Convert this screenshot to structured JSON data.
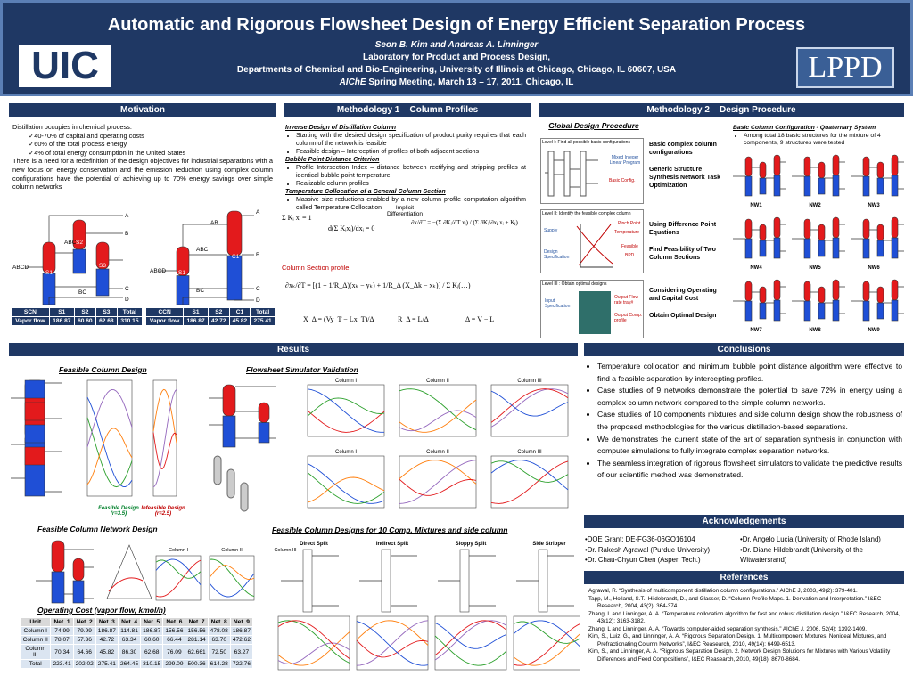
{
  "header": {
    "title": "Automatic and Rigorous Flowsheet Design of Energy Efficient Separation Process",
    "authors": "Seon B. Kim and Andreas A. Linninger",
    "lab": "Laboratory for Product and Process Design,",
    "dept": "Departments of Chemical and Bio-Engineering, University of Illinois at Chicago, Chicago, IL 60607, USA",
    "meeting_org": "AIChE",
    "meeting": " Spring Meeting, March 13 – 17, 2011, Chicago, IL",
    "logo_left": "UIC",
    "logo_right": "LPPD"
  },
  "motivation": {
    "title": "Motivation",
    "intro": "Distillation occupies in chemical process:",
    "checks": [
      "40-70% of capital and operating costs",
      "60% of the total process energy",
      "4% of total energy consumption in the United States"
    ],
    "para": "There is a need for a redefinition of the design objectives for industrial separations with a new focus on energy conservation and the emission reduction using complex column configurations have the potential of achieving up to 70% energy savings over simple column networks",
    "scn_labels": [
      "ABCD",
      "ABC",
      "S1",
      "S2",
      "S3",
      "A",
      "B",
      "BC",
      "C",
      "D"
    ],
    "ccn_labels": [
      "ABCD",
      "AB",
      "ABC",
      "BC",
      "S1",
      "S2",
      "C1",
      "A",
      "B",
      "C",
      "D"
    ],
    "table1": {
      "head": [
        "SCN",
        "S1",
        "S2",
        "S3",
        "Total"
      ],
      "rows": [
        [
          "Vapor flow",
          "186.87",
          "60.60",
          "62.68",
          "310.15"
        ]
      ]
    },
    "table2": {
      "head": [
        "CCN",
        "S1",
        "S2",
        "C1",
        "Total"
      ],
      "rows": [
        [
          "Vapor flow",
          "186.87",
          "42.72",
          "45.82",
          "275.41"
        ]
      ]
    }
  },
  "methodology1": {
    "title": "Methodology 1 – Column Profiles",
    "blocks": [
      {
        "heading": "Inverse Design of Distillation Column",
        "items": [
          "Starting with the desired design specification of product purity requires that each column of the network is feasible",
          "Feasible design – Interception of profiles of both adjacent sections"
        ]
      },
      {
        "heading": "Bubble Point Distance Criterion",
        "items": [
          "Profile Intersection Index – distance between rectifying and stripping profiles at identical bubble point temperature",
          "Realizable column profiles"
        ]
      },
      {
        "heading": "Temperature Collocation of a General Column Section",
        "items": [
          "Massive size reductions enabled by a new column profile computation algorithm called Temperature Collocation"
        ]
      }
    ],
    "eq_sum": "Σ Kᵢ xᵢ = 1",
    "eq_implicit": "Implicit Differentiation",
    "eq_deriv": "d(Σ Kᵢxᵢ)/dxᵢ = 0",
    "eq_dT": "∂x/∂T = −(Σ ∂Kᵢ/∂T xᵢ) / (Σ ∂Kᵢ/∂xⱼ xᵢ + Kⱼ)",
    "profile_label": "Column Section profile:",
    "eq_profile": "∂xₖ/∂T = [(1 + 1/R_Δ)(xₖ − yₖ) + 1/R_Δ (X_Δk − xₖ)] / Σ Kᵢ(…)",
    "eq_xd": "X_Δ = (Vy_T − Lx_T)/Δ",
    "eq_rd": "R_Δ = L/Δ",
    "eq_delta": "Δ = V − L"
  },
  "methodology2": {
    "title": "Methodology 2 – Design Procedure",
    "global_title": "Global Design Procedure",
    "level1": "Level I: Find all possible basic configurations",
    "milp": "Mixed Integer Linear Program",
    "basic_config": "Basic Config.",
    "level1_right": [
      "Basic complex column configurations",
      "Generic Structure Synthesis Network Task Optimization"
    ],
    "level2": "Level II: Identify the feasible complex column",
    "level2_boxes": [
      "Supply",
      "Design Specification",
      "Pinch Point",
      "Temperature",
      "Feasible",
      "BPD"
    ],
    "level2_right": [
      "Using Difference Point Equations",
      "Find Feasibility of Two Column Sections"
    ],
    "level3": "Level III : Obtain optimal designs",
    "level3_boxes": [
      "Input Specification",
      "Output Flow rate tray#",
      "Output Comp. profile"
    ],
    "level3_right": [
      "Considering Operating and Capital Cost",
      "Obtain Optimal Design"
    ],
    "config_title": "Basic Column Configuration",
    "config_sub": " - Quaternary System",
    "config_item": "Among total 18 basic structures for the mixture of 4 components, 9 structures were tested",
    "networks": [
      "NW1",
      "NW2",
      "NW3",
      "NW4",
      "NW5",
      "NW6",
      "NW7",
      "NW8",
      "NW9"
    ]
  },
  "results": {
    "title": "Results",
    "fcd_title": "Feasible Column Design",
    "sim_title": "Flowsheet Simulator Validation",
    "feasible_caption": "Feasible Design (r=3.5)",
    "infeasible_caption": "Infeasible Design (r=2.5)",
    "network_title": "Feasible Column Network Design",
    "column_titles": [
      "Column I",
      "Column II",
      "Column III"
    ],
    "cost_title": "Operating Cost (vapor flow, kmol/h)",
    "cost_table": {
      "head": [
        "Unit",
        "Net. 1",
        "Net. 2",
        "Net. 3",
        "Net. 4",
        "Net. 5",
        "Net. 6",
        "Net. 7",
        "Net. 8",
        "Net. 9"
      ],
      "rows": [
        [
          "Column I",
          "74.99",
          "79.99",
          "186.87",
          "114.81",
          "186.87",
          "156.56",
          "156.56",
          "478.08",
          "186.87"
        ],
        [
          "Column II",
          "78.07",
          "57.36",
          "42.72",
          "63.34",
          "60.60",
          "66.44",
          "281.14",
          "63.70",
          "472.62"
        ],
        [
          "Column III",
          "70.34",
          "64.66",
          "45.82",
          "86.30",
          "62.68",
          "76.09",
          "62.661",
          "72.50",
          "63.27"
        ],
        [
          "Total",
          "223.41",
          "202.02",
          "275.41",
          "264.45",
          "310.15",
          "299.09",
          "500.36",
          "614.28",
          "722.76"
        ]
      ]
    },
    "ten_title": "Feasible Column Designs for 10 Comp. Mixtures and side column",
    "ten_subtitles": [
      "Direct Split",
      "Indirect Split",
      "Sloppy Split",
      "Side Stripper"
    ]
  },
  "conclusions": {
    "title": "Conclusions",
    "items": [
      "Temperature collocation and minimum bubble point distance algorithm were effective to find a feasible separation by intercepting profiles.",
      "Case studies of 9 networks demonstrate the potential to save 72% in energy using a complex column network compared to the simple column networks.",
      "Case studies of 10 components mixtures and side column design show the robustness of the proposed methodologies for the various distillation-based separations.",
      "We demonstrates the current state of the art of separation synthesis in conjunction with computer simulations to fully integrate complex separation networks.",
      "The seamless integration of rigorous flowsheet simulators to validate the predictive results of our scientific method was demonstrated."
    ]
  },
  "acknowledgements": {
    "title": "Acknowledgements",
    "left": [
      "DOE Grant: DE-FG36-06GO16104",
      "Dr. Rakesh Agrawal (Purdue University)",
      "Dr. Chau-Chyun Chen (Aspen Tech.)"
    ],
    "right": [
      "Dr. Angelo Lucia (University of Rhode Island)",
      "Dr. Diane Hildebrandt (University of the Witwatersrand)"
    ]
  },
  "references": {
    "title": "References",
    "items": [
      "Agrawal, R. “Synthesis of multicomponent distillation column configurations.” AIChE J, 2003, 49(2): 379-401.",
      "Tapp, M., Holland, S.T., Hildebrandt, D., and Glasser, D. “Column Profile Maps. 1. Derivation and Interpretation.” I&EC Research, 2004, 43(2): 364-374.",
      "Zhang, L and Linninger, A. A. “Temperature collocation algorithm for fast and robust distillation design.” I&EC Research, 2004, 43(12): 3163-3182.",
      "Zhang, L and Linninger, A. A. “Towards computer-aided separation synthesis.” AIChE J, 2006, 52(4): 1392-1409.",
      "Kim, S., Luiz, G., and Linninger, A. A. “Rigorous Separation Design. 1. Multicomponent Mixtures, Nonideal Mixtures, and Prefractionating Column Networks”, I&EC Reasearch, 2010, 49(14): 6499-6513.",
      "Kim, S., and Linninger, A. A. “Rigorous Separation Design. 2. Network Design Solutions for Mixtures with Various Volatility Differences and Feed Compositions”, I&EC Reasearch, 2010, 49(18): 8670-8684."
    ]
  }
}
